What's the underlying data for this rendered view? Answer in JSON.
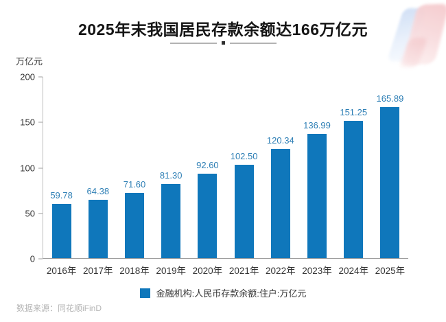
{
  "header": {
    "title": "2025年末我国居民存款余额达166万亿元"
  },
  "chart_data": {
    "type": "bar",
    "title": "2025年末我国居民存款余额达166万亿元",
    "ylabel": "万亿元",
    "xlabel": "",
    "ylim": [
      0,
      200
    ],
    "y_ticks": [
      0,
      50,
      100,
      150,
      200
    ],
    "grid": false,
    "categories": [
      "2016年",
      "2017年",
      "2018年",
      "2019年",
      "2020年",
      "2021年",
      "2022年",
      "2023年",
      "2024年",
      "2025年"
    ],
    "values": [
      59.78,
      64.38,
      71.6,
      81.3,
      92.6,
      102.5,
      120.34,
      136.99,
      151.25,
      165.89
    ],
    "value_labels": [
      "59.78",
      "64.38",
      "71.60",
      "81.30",
      "92.60",
      "102.50",
      "120.34",
      "136.99",
      "151.25",
      "165.89"
    ],
    "legend": {
      "label": "金融机构:人民币存款余额:住户:万亿元",
      "position": "bottom"
    },
    "colors": {
      "bar": "#0f77bb",
      "value_label": "#2e7fb5",
      "axis": "#9e9e9e",
      "tick_text": "#333333",
      "title_text": "#141414",
      "source_text": "#b5b5b5"
    }
  },
  "footer": {
    "source": "数据来源：同花顺iFinD"
  }
}
